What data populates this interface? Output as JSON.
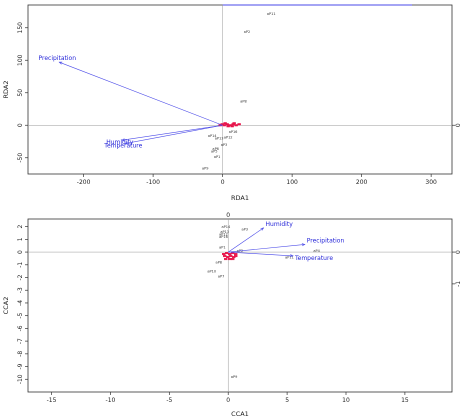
{
  "chart_data": [
    {
      "type": "scatter",
      "xlabel": "RDA1",
      "ylabel": "RDA2",
      "xlim": [
        -280,
        330
      ],
      "ylim": [
        -75,
        185
      ],
      "xticks": [
        -200,
        -100,
        0,
        100,
        200,
        300
      ],
      "yticks": [
        -50,
        0,
        50,
        100,
        150
      ],
      "tick_labels_x": [
        "-200",
        "-100",
        "0",
        "100",
        "200",
        "300"
      ],
      "tick_labels_y": [
        "-50",
        "0",
        "50",
        "100",
        "150"
      ],
      "right_axis_labels": [
        {
          "y": 0,
          "text": "0"
        }
      ],
      "top_axis_color": "#4a4ae8",
      "grid": false,
      "arrow_color": "#4a4ae8",
      "arrow_label_color": "#2626d8",
      "site_cloud_color": "#e8134a",
      "arrows": [
        {
          "name": "Precipitation",
          "x": -235,
          "y": 97
        },
        {
          "name": "Humidity",
          "x": -145,
          "y": -23
        },
        {
          "name": "Temperature",
          "x": -140,
          "y": -28
        }
      ],
      "points": [
        {
          "label": "aP11",
          "x": 70,
          "y": 170
        },
        {
          "label": "aP2",
          "x": 35,
          "y": 142
        },
        {
          "label": "aP8",
          "x": 30,
          "y": 35
        },
        {
          "label": "aP16",
          "x": 15,
          "y": -12
        },
        {
          "label": "aP12",
          "x": 8,
          "y": -20
        },
        {
          "label": "aP13",
          "x": -5,
          "y": -22
        },
        {
          "label": "aP14",
          "x": -15,
          "y": -18
        },
        {
          "label": "aP3",
          "x": 2,
          "y": -32
        },
        {
          "label": "aP6",
          "x": -10,
          "y": -38
        },
        {
          "label": "aP5",
          "x": -12,
          "y": -42
        },
        {
          "label": "aP1",
          "x": -8,
          "y": -50
        },
        {
          "label": "aP9",
          "x": -25,
          "y": -68
        }
      ]
    },
    {
      "type": "scatter",
      "xlabel": "CCA1",
      "ylabel": "CCA2",
      "xlim": [
        -17,
        19
      ],
      "ylim": [
        -11,
        2.6
      ],
      "xticks": [
        -15,
        -10,
        -5,
        0,
        5,
        10,
        15
      ],
      "yticks": [
        -10,
        -9,
        -8,
        -7,
        -6,
        -5,
        -4,
        -3,
        -2,
        -1,
        0,
        1,
        2
      ],
      "tick_labels_x": [
        "-15",
        "-10",
        "-5",
        "0",
        "5",
        "10",
        "15"
      ],
      "tick_labels_y": [
        "-10",
        "-9",
        "-8",
        "-7",
        "-6",
        "-5",
        "-4",
        "-3",
        "-2",
        "-1",
        "0",
        "1",
        "2"
      ],
      "right_axis_labels": [
        {
          "y": 0,
          "text": "0"
        },
        {
          "y": -2.5,
          "text": "-1"
        }
      ],
      "top_axis_label": "0",
      "grid": false,
      "arrow_color": "#4a4ae8",
      "arrow_label_color": "#2626d8",
      "site_cloud_color": "#e8134a",
      "arrows": [
        {
          "name": "Humidity",
          "x": 3.0,
          "y": 1.9
        },
        {
          "name": "Precipitation",
          "x": 6.5,
          "y": 0.6
        },
        {
          "name": "Temperature",
          "x": 5.5,
          "y": -0.3
        }
      ],
      "points": [
        {
          "label": "aP14",
          "x": -0.2,
          "y": 1.9
        },
        {
          "label": "aP13",
          "x": -0.3,
          "y": 1.5
        },
        {
          "label": "aP12",
          "x": -0.4,
          "y": 1.3
        },
        {
          "label": "aP16",
          "x": -0.4,
          "y": 1.1
        },
        {
          "label": "aP3",
          "x": 1.4,
          "y": 1.7
        },
        {
          "label": "aP1",
          "x": -0.5,
          "y": 0.3
        },
        {
          "label": "aP2",
          "x": 1.0,
          "y": 0.0
        },
        {
          "label": "aP4",
          "x": 7.5,
          "y": 0.0
        },
        {
          "label": "aP11",
          "x": 5.2,
          "y": -0.5
        },
        {
          "label": "aP8",
          "x": -0.8,
          "y": -0.9
        },
        {
          "label": "aP10",
          "x": -1.4,
          "y": -1.6
        },
        {
          "label": "aP7",
          "x": -0.6,
          "y": -2.0
        },
        {
          "label": "aP9",
          "x": 0.5,
          "y": -9.9
        }
      ]
    }
  ]
}
